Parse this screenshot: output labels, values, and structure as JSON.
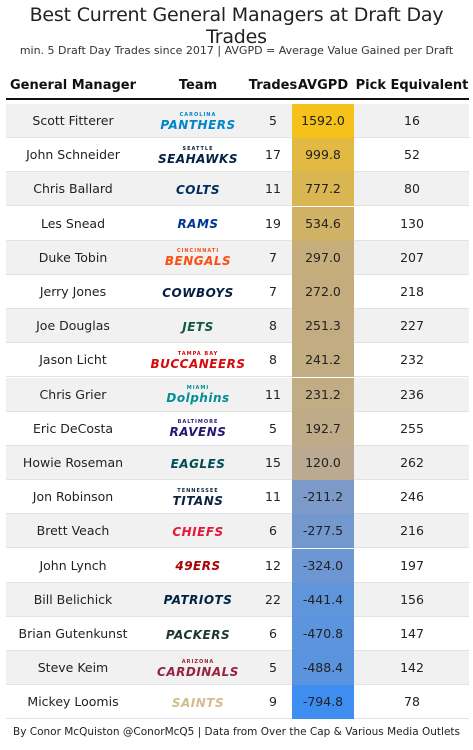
{
  "title": "Best Current General Managers at Draft Day Trades",
  "subtitle": "min. 5 Draft Day Trades since 2017 | AVGPD = Average Value Gained per Draft",
  "footer": "By Conor McQuiston @ConorMcQ5 | Data from Over the Cap & Various Media Outlets",
  "colors": {
    "high": "#f5c11b",
    "mid": "#b0a4a8",
    "low": "#3d8ef0"
  },
  "chart_data": {
    "type": "table",
    "columns": [
      "General Manager",
      "Team",
      "Trades",
      "AVGPD",
      "Pick Equivalent"
    ],
    "rows": [
      {
        "gm": "Scott Fitterer",
        "team": "Carolina Panthers",
        "logo_top": "CAROLINA",
        "logo_main": "PANTHERS",
        "logo_color": "#0085CA",
        "trades": 5,
        "avgpd": 1592.0,
        "avgpd_text": "1592.0",
        "pick": 16
      },
      {
        "gm": "John Schneider",
        "team": "Seattle Seahawks",
        "logo_top": "SEATTLE",
        "logo_main": "SEAHAWKS",
        "logo_color": "#002244",
        "trades": 17,
        "avgpd": 999.8,
        "avgpd_text": "999.8",
        "pick": 52
      },
      {
        "gm": "Chris Ballard",
        "team": "Indianapolis Colts",
        "logo_top": "",
        "logo_main": "COLTS",
        "logo_color": "#002C5F",
        "trades": 11,
        "avgpd": 777.2,
        "avgpd_text": "777.2",
        "pick": 80
      },
      {
        "gm": "Les Snead",
        "team": "Los Angeles Rams",
        "logo_top": "",
        "logo_main": "RAMS",
        "logo_color": "#003594",
        "trades": 19,
        "avgpd": 534.6,
        "avgpd_text": "534.6",
        "pick": 130
      },
      {
        "gm": "Duke Tobin",
        "team": "Cincinnati Bengals",
        "logo_top": "CINCINNATI",
        "logo_main": "BENGALS",
        "logo_color": "#FB4F14",
        "trades": 7,
        "avgpd": 297.0,
        "avgpd_text": "297.0",
        "pick": 207
      },
      {
        "gm": "Jerry Jones",
        "team": "Dallas Cowboys",
        "logo_top": "",
        "logo_main": "COWBOYS",
        "logo_color": "#041E42",
        "trades": 7,
        "avgpd": 272.0,
        "avgpd_text": "272.0",
        "pick": 218
      },
      {
        "gm": "Joe Douglas",
        "team": "New York Jets",
        "logo_top": "",
        "logo_main": "JETS",
        "logo_color": "#125740",
        "trades": 8,
        "avgpd": 251.3,
        "avgpd_text": "251.3",
        "pick": 227
      },
      {
        "gm": "Jason Licht",
        "team": "Tampa Bay Buccaneers",
        "logo_top": "TAMPA BAY",
        "logo_main": "BUCCANEERS",
        "logo_color": "#D50A0A",
        "trades": 8,
        "avgpd": 241.2,
        "avgpd_text": "241.2",
        "pick": 232
      },
      {
        "gm": "Chris Grier",
        "team": "Miami Dolphins",
        "logo_top": "MIAMI",
        "logo_main": "Dolphins",
        "logo_color": "#008E97",
        "trades": 11,
        "avgpd": 231.2,
        "avgpd_text": "231.2",
        "pick": 236
      },
      {
        "gm": "Eric DeCosta",
        "team": "Baltimore Ravens",
        "logo_top": "BALTIMORE",
        "logo_main": "RAVENS",
        "logo_color": "#241773",
        "trades": 5,
        "avgpd": 192.7,
        "avgpd_text": "192.7",
        "pick": 255
      },
      {
        "gm": "Howie Roseman",
        "team": "Philadelphia Eagles",
        "logo_top": "",
        "logo_main": "EAGLES",
        "logo_color": "#004C54",
        "trades": 15,
        "avgpd": 120.0,
        "avgpd_text": "120.0",
        "pick": 262
      },
      {
        "gm": "Jon Robinson",
        "team": "Tennessee Titans",
        "logo_top": "TENNESSEE",
        "logo_main": "TITANS",
        "logo_color": "#0C2340",
        "trades": 11,
        "avgpd": -211.2,
        "avgpd_text": "-211.2",
        "pick": 246
      },
      {
        "gm": "Brett Veach",
        "team": "Kansas City Chiefs",
        "logo_top": "",
        "logo_main": "CHIEFS",
        "logo_color": "#E31837",
        "trades": 6,
        "avgpd": -277.5,
        "avgpd_text": "-277.5",
        "pick": 216
      },
      {
        "gm": "John Lynch",
        "team": "San Francisco 49ers",
        "logo_top": "",
        "logo_main": "49ERS",
        "logo_color": "#AA0000",
        "trades": 12,
        "avgpd": -324.0,
        "avgpd_text": "-324.0",
        "pick": 197
      },
      {
        "gm": "Bill Belichick",
        "team": "New England Patriots",
        "logo_top": "",
        "logo_main": "PATRIOTS",
        "logo_color": "#002244",
        "trades": 22,
        "avgpd": -441.4,
        "avgpd_text": "-441.4",
        "pick": 156
      },
      {
        "gm": "Brian Gutenkunst",
        "team": "Green Bay Packers",
        "logo_top": "",
        "logo_main": "PACKERS",
        "logo_color": "#203731",
        "trades": 6,
        "avgpd": -470.8,
        "avgpd_text": "-470.8",
        "pick": 147
      },
      {
        "gm": "Steve Keim",
        "team": "Arizona Cardinals",
        "logo_top": "ARIZONA",
        "logo_main": "CARDINALS",
        "logo_color": "#97233F",
        "trades": 5,
        "avgpd": -488.4,
        "avgpd_text": "-488.4",
        "pick": 142
      },
      {
        "gm": "Mickey Loomis",
        "team": "New Orleans Saints",
        "logo_top": "",
        "logo_main": "SAINTS",
        "logo_color": "#D3BC8D",
        "trades": 9,
        "avgpd": -794.8,
        "avgpd_text": "-794.8",
        "pick": 78
      }
    ]
  }
}
